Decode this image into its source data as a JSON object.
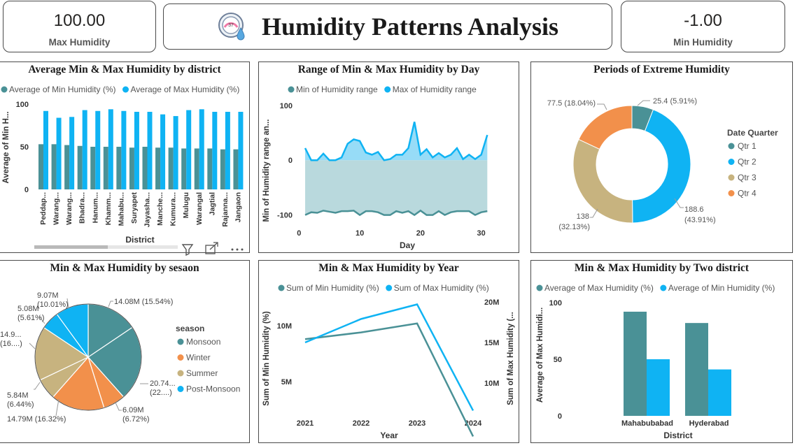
{
  "kpi_max": {
    "value": "100.00",
    "label": "Max Humidity"
  },
  "kpi_min": {
    "value": "-1.00",
    "label": "Min Humidity"
  },
  "header": {
    "title": "Humidity Patterns Analysis"
  },
  "colors": {
    "teal": "#4a9196",
    "blue": "#0fb3f3",
    "orange": "#f2904b",
    "tan": "#c7b37f",
    "area_fill": "#b5d7db"
  },
  "icons": [
    "humidity-gauge-icon",
    "filter-icon",
    "focus-mode-icon",
    "more-options-icon"
  ],
  "chart_data": [
    {
      "id": "district_bar",
      "type": "bar",
      "title": "Average Min & Max Humidity by district",
      "xlabel": "District",
      "ylabel": "Average of Min H...",
      "ylim": [
        0,
        100
      ],
      "yticks": [
        "0",
        "50",
        "100"
      ],
      "categories": [
        "Peddap...",
        "Warang...",
        "Warang...",
        "Bhadra...",
        "Hanum...",
        "Khamm...",
        "Mahabu...",
        "Suryapet",
        "Jayasha...",
        "Manche...",
        "Kumura...",
        "Mulugu",
        "Warangal",
        "Jagtial",
        "Rajanna...",
        "Jangaon"
      ],
      "series": [
        {
          "name": "Average of Min Humidity (%)",
          "values": [
            53,
            53,
            52,
            51,
            50,
            50,
            50,
            49,
            50,
            49,
            49,
            48,
            48,
            48,
            47,
            47
          ]
        },
        {
          "name": "Average of Max Humidity (%)",
          "values": [
            92,
            84,
            85,
            93,
            92,
            94,
            92,
            91,
            91,
            88,
            86,
            93,
            94,
            91,
            91,
            91
          ]
        }
      ]
    },
    {
      "id": "day_area",
      "type": "area",
      "title": "Range of Min & Max Humidity by Day",
      "xlabel": "Day",
      "ylabel": "Min of Humidity range an...",
      "xlim": [
        -2,
        32
      ],
      "ylim": [
        -140,
        115
      ],
      "xticks": [
        "0",
        "10",
        "20",
        "30"
      ],
      "yticks": [
        "-100",
        "0",
        "100"
      ],
      "x": [
        1,
        2,
        3,
        4,
        5,
        6,
        7,
        8,
        9,
        10,
        11,
        12,
        13,
        14,
        15,
        16,
        17,
        18,
        19,
        20,
        21,
        22,
        23,
        24,
        25,
        26,
        27,
        28,
        29,
        30,
        31
      ],
      "series": [
        {
          "name": "Min of Humidity range",
          "values": [
            -100,
            -95,
            -96,
            -92,
            -94,
            -96,
            -93,
            -93,
            -92,
            -100,
            -93,
            -93,
            -95,
            -100,
            -100,
            -93,
            -96,
            -93,
            -100,
            -92,
            -100,
            -100,
            -93,
            -100,
            -95,
            -93,
            -93,
            -93,
            -100,
            -95,
            -93
          ]
        },
        {
          "name": "Max of Humidity range",
          "values": [
            22,
            0,
            0,
            12,
            0,
            0,
            5,
            30,
            38,
            35,
            14,
            10,
            15,
            0,
            2,
            10,
            10,
            22,
            70,
            10,
            20,
            5,
            13,
            5,
            10,
            22,
            2,
            10,
            2,
            10,
            46
          ]
        }
      ]
    },
    {
      "id": "extreme_donut",
      "type": "pie",
      "title": "Periods of Extreme Humidity",
      "legend_title": "Date Quarter",
      "legend": "right",
      "slices": [
        {
          "name": "Qtr 1",
          "value": 25.4,
          "label": "25.4 (5.91%)"
        },
        {
          "name": "Qtr 2",
          "value": 188.6,
          "label_lines": [
            "188.6",
            "(43.91%)"
          ]
        },
        {
          "name": "Qtr 3",
          "value": 138,
          "label_lines": [
            "138",
            "(32.13%)"
          ]
        },
        {
          "name": "Qtr 4",
          "value": 77.5,
          "label": "77.5 (18.04%)"
        }
      ]
    },
    {
      "id": "season_pie",
      "type": "pie",
      "title": "Min & Max Humidity by sesaon",
      "legend_title": "season",
      "legend": "right",
      "legend_entries": [
        "Monsoon",
        "Winter",
        "Summer",
        "Post-Monsoon"
      ],
      "slices": [
        {
          "name": "Monsoon",
          "value": 14.08,
          "label_lines": [
            "14.08M (15.54%)"
          ]
        },
        {
          "name": "Monsoon",
          "value": 20.74,
          "label_lines": [
            "20.74...",
            "(22....)"
          ]
        },
        {
          "name": "Winter",
          "value": 6.09,
          "label_lines": [
            "6.09M",
            "(6.72%)"
          ]
        },
        {
          "name": "Winter",
          "value": 14.79,
          "label_lines": [
            "14.79M (16.32%)"
          ]
        },
        {
          "name": "Summer",
          "value": 5.84,
          "label_lines": [
            "5.84M",
            "(6.44%)"
          ]
        },
        {
          "name": "Summer",
          "value": 14.9,
          "label_lines": [
            "14.9...",
            "(16....)"
          ]
        },
        {
          "name": "Post-Monsoon",
          "value": 5.08,
          "label_lines": [
            "5.08M",
            "(5.61%)"
          ]
        },
        {
          "name": "Post-Monsoon",
          "value": 9.07,
          "label_lines": [
            "9.07M",
            "(10.01%)"
          ]
        }
      ]
    },
    {
      "id": "year_line",
      "type": "line",
      "title": "Min & Max Humidity by Year",
      "xlabel": "Year",
      "ylabel_left": "Sum of Min Humidity (%)",
      "ylabel_right": "Sum of Max Humidity (...",
      "categories": [
        "2021",
        "2022",
        "2023",
        "2024"
      ],
      "yticks_left": [
        "5M",
        "10M"
      ],
      "yticks_right": [
        "10M",
        "15M",
        "20M"
      ],
      "series": [
        {
          "name": "Sum of Min Humidity (%)",
          "values": [
            8.8,
            9.4,
            10.2,
            0.1
          ]
        },
        {
          "name": "Sum of Max Humidity (%)",
          "values": [
            15.0,
            17.9,
            19.7,
            6.6
          ]
        }
      ]
    },
    {
      "id": "two_district_bar",
      "type": "bar",
      "title": "Min & Max Humidity by Two district",
      "xlabel": "District",
      "ylabel": "Average of Max Humidi...",
      "ylim": [
        0,
        100
      ],
      "yticks": [
        "0",
        "50",
        "100"
      ],
      "categories": [
        "Mahabubabad",
        "Hyderabad"
      ],
      "series": [
        {
          "name": "Average of Max Humidity (%)",
          "values": [
            92,
            82
          ]
        },
        {
          "name": "Average of Min Humidity (%)",
          "values": [
            50,
            41
          ]
        }
      ]
    }
  ]
}
